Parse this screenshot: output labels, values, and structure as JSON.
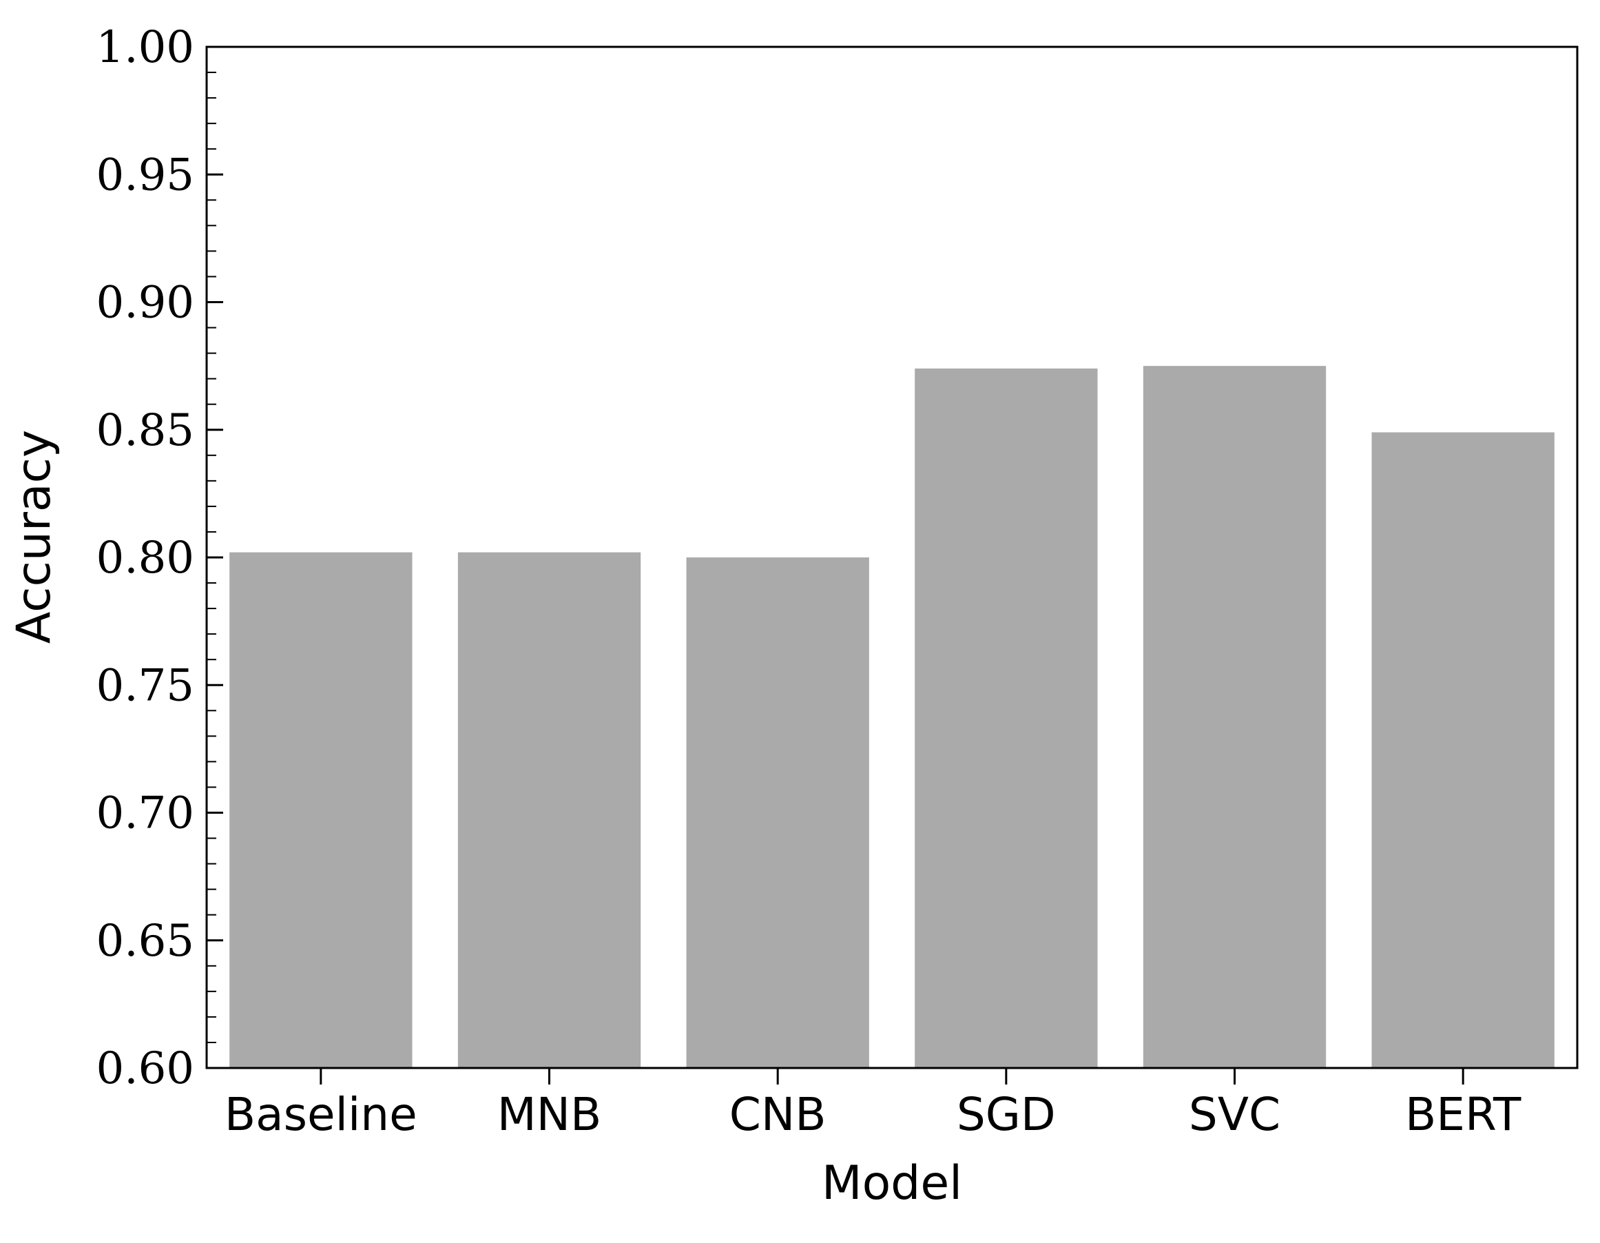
{
  "chart_data": {
    "type": "bar",
    "title": "",
    "xlabel": "Model",
    "ylabel": "Accuracy",
    "categories": [
      "Baseline",
      "MNB",
      "CNB",
      "SGD",
      "SVC",
      "BERT"
    ],
    "values": [
      0.802,
      0.802,
      0.8,
      0.874,
      0.875,
      0.849
    ],
    "ylim": [
      0.6,
      1.0
    ],
    "yticks": [
      0.6,
      0.65,
      0.7,
      0.75,
      0.8,
      0.85,
      0.9,
      0.95,
      1.0
    ],
    "ytick_labels": [
      "0.60",
      "0.65",
      "0.70",
      "0.75",
      "0.80",
      "0.85",
      "0.90",
      "0.95",
      "1.00"
    ],
    "y_minor_step": 0.01,
    "grid": false,
    "legend": "none",
    "bar_color": "#aaaaaa",
    "axis_color": "#000000"
  }
}
